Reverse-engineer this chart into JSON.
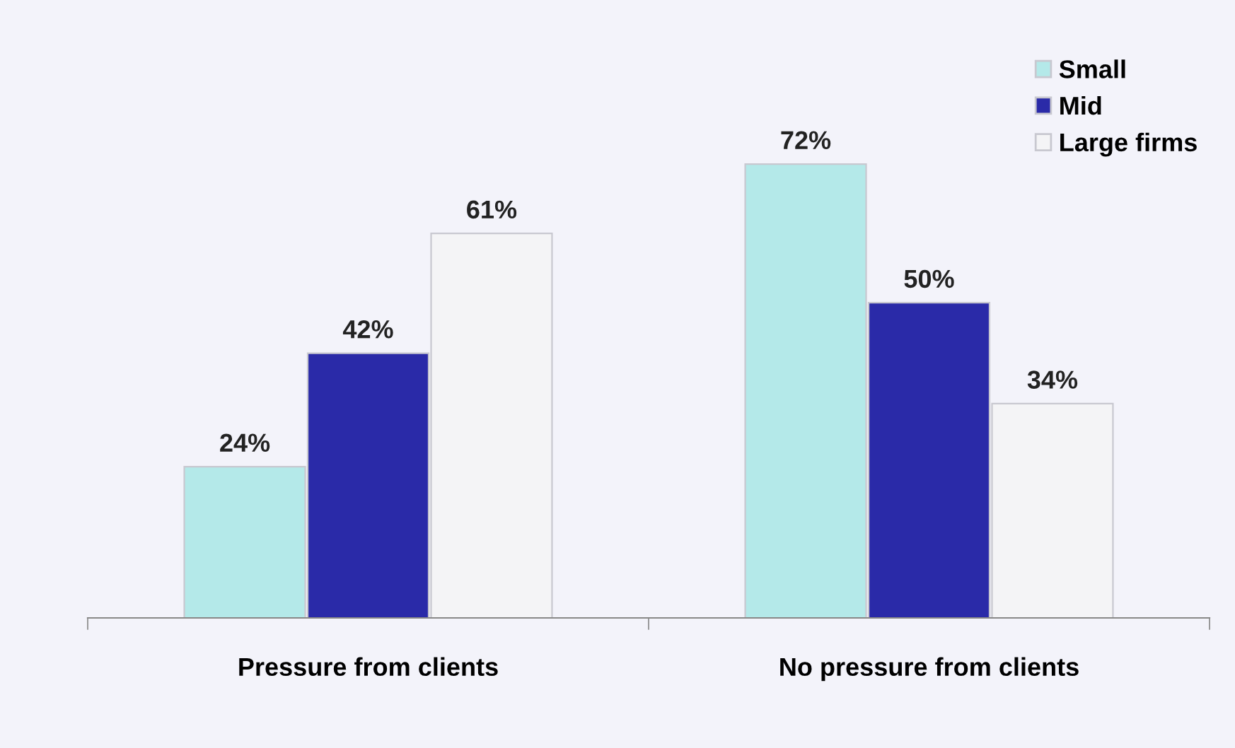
{
  "chart_data": {
    "type": "bar",
    "categories": [
      "Pressure from clients",
      "No pressure from clients"
    ],
    "series": [
      {
        "name": "Small",
        "color": "#b4e9e9",
        "values": [
          24,
          72
        ],
        "value_labels": [
          "24%",
          "72%"
        ]
      },
      {
        "name": "Mid",
        "color": "#2a2aa8",
        "values": [
          42,
          50
        ],
        "value_labels": [
          "42%",
          "50%"
        ]
      },
      {
        "name": "Large firms",
        "color": "#f4f4f6",
        "values": [
          61,
          34
        ],
        "value_labels": [
          "61%",
          "34%"
        ]
      }
    ],
    "legend": "top right",
    "grid": false
  }
}
